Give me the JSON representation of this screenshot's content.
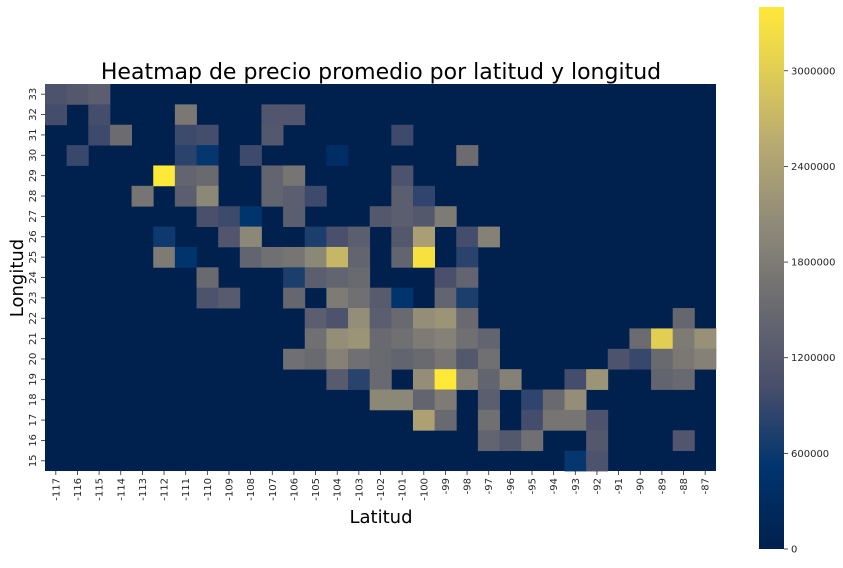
{
  "chart_data": {
    "type": "heatmap",
    "title": "Heatmap de precio promedio por latitud y longitud",
    "xlabel": "Latitud",
    "ylabel": "Longitud",
    "x_categories": [
      "-117",
      "-116",
      "-115",
      "-114",
      "-113",
      "-112",
      "-111",
      "-110",
      "-109",
      "-108",
      "-107",
      "-106",
      "-105",
      "-104",
      "-103",
      "-102",
      "-101",
      "-100",
      "-99",
      "-98",
      "-97",
      "-96",
      "-95",
      "-94",
      "-93",
      "-92",
      "-91",
      "-90",
      "-89",
      "-88",
      "-87"
    ],
    "y_categories": [
      "33",
      "32",
      "31",
      "30",
      "29",
      "28",
      "27",
      "26",
      "25",
      "24",
      "23",
      "22",
      "21",
      "20",
      "19",
      "18",
      "17",
      "16",
      "15"
    ],
    "colormap": "cividis",
    "vmin": 0,
    "vmax": 3400000,
    "colorbar_ticks": [
      0,
      600000,
      1200000,
      1800000,
      2400000,
      3000000
    ],
    "colorbar_tick_labels": [
      "0",
      "600000",
      "1200000",
      "1800000",
      "2400000",
      "3000000"
    ],
    "cells": [
      {
        "x": "-117",
        "y": "33",
        "value": 1100000
      },
      {
        "x": "-116",
        "y": "33",
        "value": 1200000
      },
      {
        "x": "-115",
        "y": "33",
        "value": 1300000
      },
      {
        "x": "-117",
        "y": "32",
        "value": 1000000
      },
      {
        "x": "-115",
        "y": "32",
        "value": 1000000
      },
      {
        "x": "-111",
        "y": "32",
        "value": 1750000
      },
      {
        "x": "-107",
        "y": "32",
        "value": 1150000
      },
      {
        "x": "-106",
        "y": "32",
        "value": 1150000
      },
      {
        "x": "-115",
        "y": "31",
        "value": 950000
      },
      {
        "x": "-114",
        "y": "31",
        "value": 1550000
      },
      {
        "x": "-111",
        "y": "31",
        "value": 950000
      },
      {
        "x": "-110",
        "y": "31",
        "value": 1000000
      },
      {
        "x": "-107",
        "y": "31",
        "value": 1200000
      },
      {
        "x": "-101",
        "y": "31",
        "value": 950000
      },
      {
        "x": "-116",
        "y": "30",
        "value": 900000
      },
      {
        "x": "-111",
        "y": "30",
        "value": 800000
      },
      {
        "x": "-110",
        "y": "30",
        "value": 550000
      },
      {
        "x": "-108",
        "y": "30",
        "value": 950000
      },
      {
        "x": "-104",
        "y": "30",
        "value": 350000
      },
      {
        "x": "-98",
        "y": "30",
        "value": 1550000
      },
      {
        "x": "-112",
        "y": "29",
        "value": 3400000
      },
      {
        "x": "-111",
        "y": "29",
        "value": 1400000
      },
      {
        "x": "-110",
        "y": "29",
        "value": 1500000
      },
      {
        "x": "-107",
        "y": "29",
        "value": 1400000
      },
      {
        "x": "-106",
        "y": "29",
        "value": 1700000
      },
      {
        "x": "-101",
        "y": "29",
        "value": 1100000
      },
      {
        "x": "-113",
        "y": "28",
        "value": 1700000
      },
      {
        "x": "-111",
        "y": "28",
        "value": 1300000
      },
      {
        "x": "-110",
        "y": "28",
        "value": 2000000
      },
      {
        "x": "-107",
        "y": "28",
        "value": 1400000
      },
      {
        "x": "-106",
        "y": "28",
        "value": 1300000
      },
      {
        "x": "-105",
        "y": "28",
        "value": 950000
      },
      {
        "x": "-101",
        "y": "28",
        "value": 1300000
      },
      {
        "x": "-100",
        "y": "28",
        "value": 850000
      },
      {
        "x": "-110",
        "y": "27",
        "value": 1050000
      },
      {
        "x": "-109",
        "y": "27",
        "value": 950000
      },
      {
        "x": "-108",
        "y": "27",
        "value": 500000
      },
      {
        "x": "-106",
        "y": "27",
        "value": 1300000
      },
      {
        "x": "-102",
        "y": "27",
        "value": 1200000
      },
      {
        "x": "-101",
        "y": "27",
        "value": 1300000
      },
      {
        "x": "-100",
        "y": "27",
        "value": 1200000
      },
      {
        "x": "-99",
        "y": "27",
        "value": 1800000
      },
      {
        "x": "-112",
        "y": "26",
        "value": 600000
      },
      {
        "x": "-109",
        "y": "26",
        "value": 1150000
      },
      {
        "x": "-108",
        "y": "26",
        "value": 2000000
      },
      {
        "x": "-105",
        "y": "26",
        "value": 700000
      },
      {
        "x": "-104",
        "y": "26",
        "value": 1050000
      },
      {
        "x": "-103",
        "y": "26",
        "value": 1300000
      },
      {
        "x": "-101",
        "y": "26",
        "value": 1200000
      },
      {
        "x": "-100",
        "y": "26",
        "value": 2350000
      },
      {
        "x": "-98",
        "y": "26",
        "value": 1000000
      },
      {
        "x": "-97",
        "y": "26",
        "value": 1900000
      },
      {
        "x": "-112",
        "y": "25",
        "value": 1800000
      },
      {
        "x": "-111",
        "y": "25",
        "value": 500000
      },
      {
        "x": "-108",
        "y": "25",
        "value": 1400000
      },
      {
        "x": "-107",
        "y": "25",
        "value": 1600000
      },
      {
        "x": "-106",
        "y": "25",
        "value": 1700000
      },
      {
        "x": "-105",
        "y": "25",
        "value": 2000000
      },
      {
        "x": "-104",
        "y": "25",
        "value": 2700000
      },
      {
        "x": "-103",
        "y": "25",
        "value": 1400000
      },
      {
        "x": "-101",
        "y": "25",
        "value": 1400000
      },
      {
        "x": "-100",
        "y": "25",
        "value": 3300000
      },
      {
        "x": "-98",
        "y": "25",
        "value": 800000
      },
      {
        "x": "-110",
        "y": "24",
        "value": 1500000
      },
      {
        "x": "-106",
        "y": "24",
        "value": 700000
      },
      {
        "x": "-105",
        "y": "24",
        "value": 1300000
      },
      {
        "x": "-104",
        "y": "24",
        "value": 1400000
      },
      {
        "x": "-103",
        "y": "24",
        "value": 1500000
      },
      {
        "x": "-99",
        "y": "24",
        "value": 1050000
      },
      {
        "x": "-98",
        "y": "24",
        "value": 1400000
      },
      {
        "x": "-110",
        "y": "23",
        "value": 1100000
      },
      {
        "x": "-109",
        "y": "23",
        "value": 1250000
      },
      {
        "x": "-106",
        "y": "23",
        "value": 1450000
      },
      {
        "x": "-104",
        "y": "23",
        "value": 1800000
      },
      {
        "x": "-103",
        "y": "23",
        "value": 1600000
      },
      {
        "x": "-102",
        "y": "23",
        "value": 1250000
      },
      {
        "x": "-101",
        "y": "23",
        "value": 500000
      },
      {
        "x": "-99",
        "y": "23",
        "value": 1400000
      },
      {
        "x": "-98",
        "y": "23",
        "value": 700000
      },
      {
        "x": "-105",
        "y": "22",
        "value": 1300000
      },
      {
        "x": "-104",
        "y": "22",
        "value": 1100000
      },
      {
        "x": "-103",
        "y": "22",
        "value": 2100000
      },
      {
        "x": "-102",
        "y": "22",
        "value": 1300000
      },
      {
        "x": "-101",
        "y": "22",
        "value": 1500000
      },
      {
        "x": "-100",
        "y": "22",
        "value": 2100000
      },
      {
        "x": "-99",
        "y": "22",
        "value": 2200000
      },
      {
        "x": "-98",
        "y": "22",
        "value": 1500000
      },
      {
        "x": "-88",
        "y": "22",
        "value": 1450000
      },
      {
        "x": "-105",
        "y": "21",
        "value": 1600000
      },
      {
        "x": "-104",
        "y": "21",
        "value": 2100000
      },
      {
        "x": "-103",
        "y": "21",
        "value": 2200000
      },
      {
        "x": "-102",
        "y": "21",
        "value": 1500000
      },
      {
        "x": "-101",
        "y": "21",
        "value": 1600000
      },
      {
        "x": "-100",
        "y": "21",
        "value": 1800000
      },
      {
        "x": "-99",
        "y": "21",
        "value": 1900000
      },
      {
        "x": "-98",
        "y": "21",
        "value": 1600000
      },
      {
        "x": "-97",
        "y": "21",
        "value": 1400000
      },
      {
        "x": "-90",
        "y": "21",
        "value": 1550000
      },
      {
        "x": "-89",
        "y": "21",
        "value": 3000000
      },
      {
        "x": "-88",
        "y": "21",
        "value": 1800000
      },
      {
        "x": "-87",
        "y": "21",
        "value": 2150000
      },
      {
        "x": "-106",
        "y": "20",
        "value": 1600000
      },
      {
        "x": "-105",
        "y": "20",
        "value": 1500000
      },
      {
        "x": "-104",
        "y": "20",
        "value": 1900000
      },
      {
        "x": "-103",
        "y": "20",
        "value": 1600000
      },
      {
        "x": "-102",
        "y": "20",
        "value": 1500000
      },
      {
        "x": "-101",
        "y": "20",
        "value": 1400000
      },
      {
        "x": "-100",
        "y": "20",
        "value": 1500000
      },
      {
        "x": "-99",
        "y": "20",
        "value": 1700000
      },
      {
        "x": "-98",
        "y": "20",
        "value": 1200000
      },
      {
        "x": "-97",
        "y": "20",
        "value": 1600000
      },
      {
        "x": "-91",
        "y": "20",
        "value": 1100000
      },
      {
        "x": "-90",
        "y": "20",
        "value": 900000
      },
      {
        "x": "-89",
        "y": "20",
        "value": 1500000
      },
      {
        "x": "-88",
        "y": "20",
        "value": 1750000
      },
      {
        "x": "-87",
        "y": "20",
        "value": 1900000
      },
      {
        "x": "-104",
        "y": "19",
        "value": 1250000
      },
      {
        "x": "-103",
        "y": "19",
        "value": 800000
      },
      {
        "x": "-102",
        "y": "19",
        "value": 1500000
      },
      {
        "x": "-100",
        "y": "19",
        "value": 2100000
      },
      {
        "x": "-99",
        "y": "19",
        "value": 3400000
      },
      {
        "x": "-98",
        "y": "19",
        "value": 1900000
      },
      {
        "x": "-97",
        "y": "19",
        "value": 1400000
      },
      {
        "x": "-96",
        "y": "19",
        "value": 1900000
      },
      {
        "x": "-93",
        "y": "19",
        "value": 1000000
      },
      {
        "x": "-92",
        "y": "19",
        "value": 2200000
      },
      {
        "x": "-89",
        "y": "19",
        "value": 1400000
      },
      {
        "x": "-88",
        "y": "19",
        "value": 1500000
      },
      {
        "x": "-102",
        "y": "18",
        "value": 2000000
      },
      {
        "x": "-101",
        "y": "18",
        "value": 2000000
      },
      {
        "x": "-100",
        "y": "18",
        "value": 1400000
      },
      {
        "x": "-99",
        "y": "18",
        "value": 1800000
      },
      {
        "x": "-97",
        "y": "18",
        "value": 1300000
      },
      {
        "x": "-95",
        "y": "18",
        "value": 850000
      },
      {
        "x": "-94",
        "y": "18",
        "value": 1500000
      },
      {
        "x": "-93",
        "y": "18",
        "value": 2100000
      },
      {
        "x": "-100",
        "y": "17",
        "value": 2400000
      },
      {
        "x": "-99",
        "y": "17",
        "value": 1500000
      },
      {
        "x": "-97",
        "y": "17",
        "value": 1600000
      },
      {
        "x": "-95",
        "y": "17",
        "value": 1000000
      },
      {
        "x": "-94",
        "y": "17",
        "value": 1700000
      },
      {
        "x": "-93",
        "y": "17",
        "value": 1700000
      },
      {
        "x": "-92",
        "y": "17",
        "value": 1100000
      },
      {
        "x": "-97",
        "y": "16",
        "value": 1400000
      },
      {
        "x": "-96",
        "y": "16",
        "value": 1200000
      },
      {
        "x": "-95",
        "y": "16",
        "value": 1600000
      },
      {
        "x": "-92",
        "y": "16",
        "value": 1200000
      },
      {
        "x": "-88",
        "y": "16",
        "value": 1150000
      },
      {
        "x": "-93",
        "y": "15",
        "value": 550000
      },
      {
        "x": "-92",
        "y": "15",
        "value": 1100000
      }
    ]
  }
}
